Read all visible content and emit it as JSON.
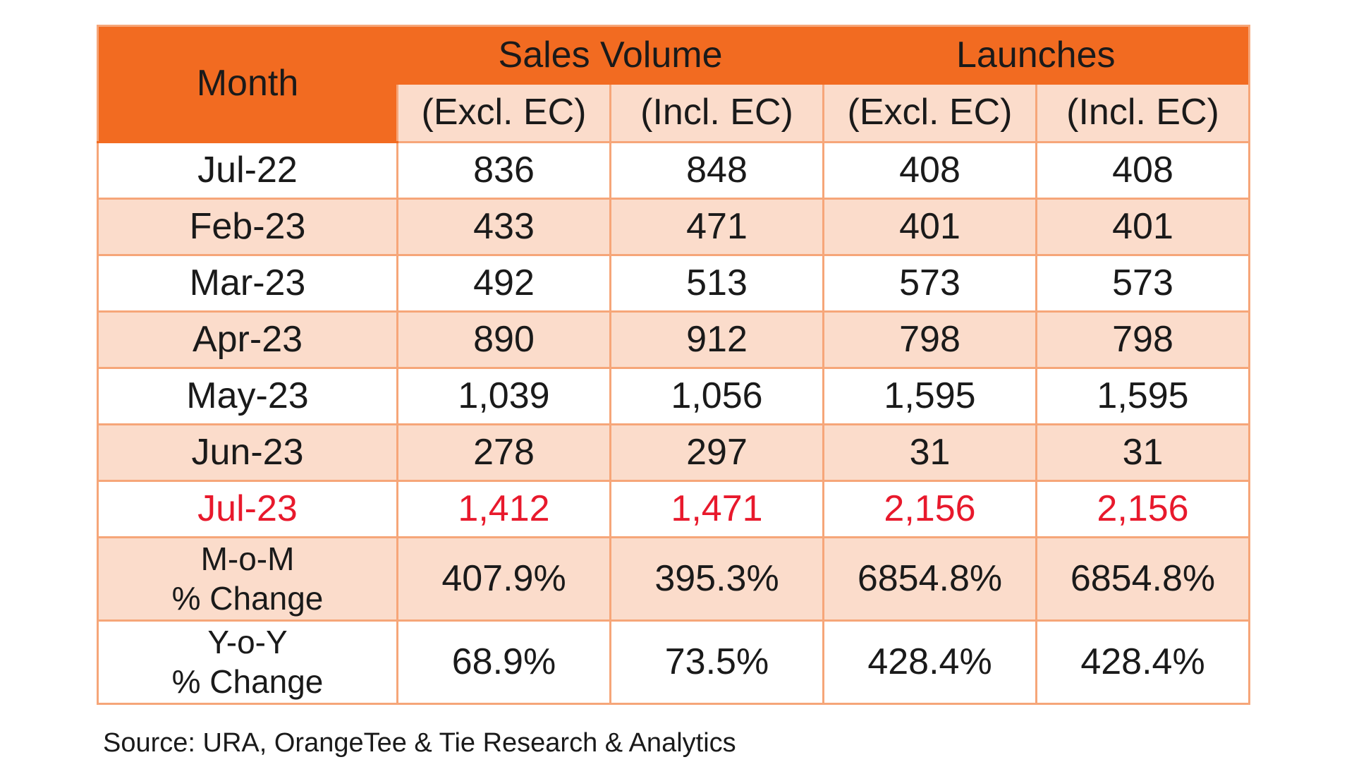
{
  "table": {
    "header": {
      "month": "Month",
      "group1": "Sales Volume",
      "group2": "Launches",
      "sub": [
        "(Excl. EC)",
        "(Incl. EC)",
        "(Excl. EC)",
        "(Incl. EC)"
      ]
    },
    "rows": [
      {
        "month": "Jul-22",
        "values": [
          "836",
          "848",
          "408",
          "408"
        ]
      },
      {
        "month": "Feb-23",
        "values": [
          "433",
          "471",
          "401",
          "401"
        ]
      },
      {
        "month": "Mar-23",
        "values": [
          "492",
          "513",
          "573",
          "573"
        ]
      },
      {
        "month": "Apr-23",
        "values": [
          "890",
          "912",
          "798",
          "798"
        ]
      },
      {
        "month": "May-23",
        "values": [
          "1,039",
          "1,056",
          "1,595",
          "1,595"
        ]
      },
      {
        "month": "Jun-23",
        "values": [
          "278",
          "297",
          "31",
          "31"
        ]
      },
      {
        "month": "Jul-23",
        "values": [
          "1,412",
          "1,471",
          "2,156",
          "2,156"
        ],
        "highlight": true
      }
    ],
    "change_rows": [
      {
        "label_line1": "M-o-M",
        "label_line2": "% Change",
        "values": [
          "407.9%",
          "395.3%",
          "6854.8%",
          "6854.8%"
        ]
      },
      {
        "label_line1": "Y-o-Y",
        "label_line2": "% Change",
        "values": [
          "68.9%",
          "73.5%",
          "428.4%",
          "428.4%"
        ]
      }
    ]
  },
  "source": "Source: URA, OrangeTee & Tie Research & Analytics",
  "colors": {
    "header_orange": "#f26b21",
    "band_peach": "#fbdccb",
    "border": "#f6a679",
    "highlight_red": "#e8192c"
  }
}
